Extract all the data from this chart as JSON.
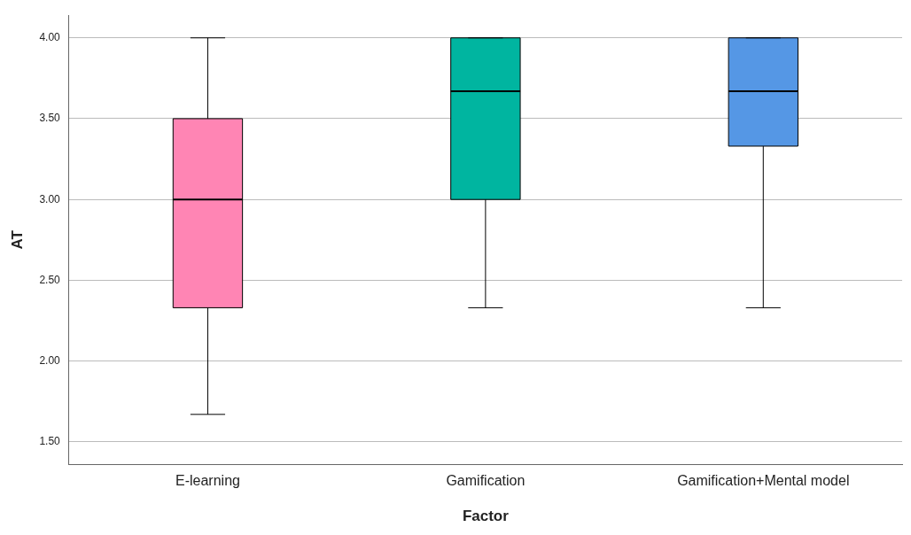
{
  "chart_data": {
    "type": "box",
    "xlabel": "Factor",
    "ylabel": "AT",
    "categories": [
      "E-learning",
      "Gamification",
      "Gamification+Mental model"
    ],
    "colors": [
      "#ff85b4",
      "#00b5a0",
      "#5597e5"
    ],
    "boxes": [
      {
        "low": 1.67,
        "q1": 2.33,
        "median": 3.0,
        "q3": 3.5,
        "high": 4.0
      },
      {
        "low": 2.33,
        "q1": 3.0,
        "median": 3.67,
        "q3": 4.0,
        "high": 4.0
      },
      {
        "low": 2.33,
        "q1": 3.33,
        "median": 3.67,
        "q3": 4.0,
        "high": 4.0
      }
    ],
    "ylim": [
      1.36,
      4.14
    ],
    "yticks": [
      {
        "value": 1.5,
        "label": "1.50"
      },
      {
        "value": 2,
        "label": "2.00"
      },
      {
        "value": 2.5,
        "label": "2.50"
      },
      {
        "value": 3,
        "label": "3.00"
      },
      {
        "value": 3.5,
        "label": "3.50"
      },
      {
        "value": 4,
        "label": "4.00"
      }
    ],
    "grid": "y"
  }
}
